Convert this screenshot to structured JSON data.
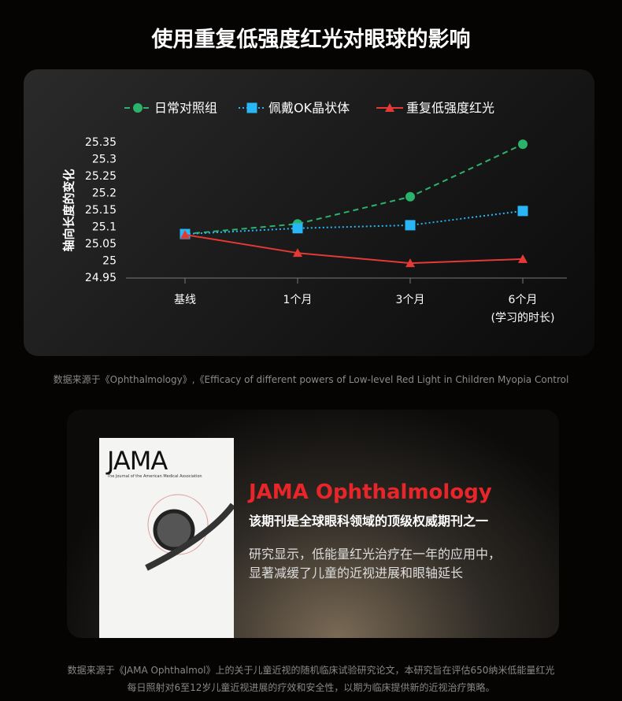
{
  "title": "使用重复低强度红光对眼球的影响",
  "chart_data": {
    "type": "line",
    "ylabel": "轴向长度的变化",
    "xlabel": "(学习的时长)",
    "categories": [
      "基线",
      "1个月",
      "3个月",
      "6个月"
    ],
    "ylim": [
      24.95,
      25.35
    ],
    "yticks": [
      24.95,
      25,
      25.05,
      25.1,
      25.15,
      25.2,
      25.25,
      25.3,
      25.35
    ],
    "series": [
      {
        "name": "日常对照组",
        "color": "#2bb36b",
        "line": "dashed",
        "marker": "circle",
        "values": [
          25.08,
          25.11,
          25.19,
          25.345
        ]
      },
      {
        "name": "佩戴OK晶状体",
        "color": "#29b6f6",
        "line": "dotted",
        "marker": "square",
        "values": [
          25.08,
          25.097,
          25.106,
          25.148
        ]
      },
      {
        "name": "重复低强度红光",
        "color": "#e53935",
        "line": "solid",
        "marker": "triangle",
        "values": [
          25.078,
          25.024,
          24.994,
          25.006
        ]
      }
    ]
  },
  "source_note": "数据来源于《Ophthalmology》,《Efficacy of different powers of Low-level Red Light in Children Myopia Control",
  "journal": {
    "cover_title": "JAMA",
    "cover_subtitle": "The Journal of the American Medical Association",
    "name": "JAMA Ophthalmology",
    "tagline": "该期刊是全球眼科领域的顶级权威期刊之一",
    "body": [
      "研究显示，低能量红光治疗在一年的应用中，",
      "显著减缓了儿童的近视进展和眼轴延长"
    ]
  },
  "footnote": [
    "数据来源于《JAMA Ophthalmol》上的关于儿童近视的随机临床试验研究论文，本研究旨在评估650纳米低能量红光",
    "每日照射对6至12岁儿童近视进展的疗效和安全性，以期为临床提供新的近视治疗策略。"
  ]
}
